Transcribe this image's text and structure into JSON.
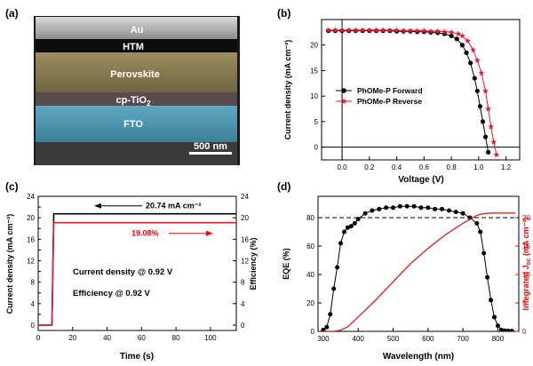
{
  "panels": {
    "a": {
      "label": "(a)",
      "layers": [
        "Au",
        "HTM",
        "Perovskite",
        "cp-TiO",
        "FTO"
      ],
      "tio2_subscript": "2",
      "scale_bar": "500 nm"
    },
    "b": {
      "label": "(b)"
    },
    "c": {
      "label": "(c)"
    },
    "d": {
      "label": "(d)"
    }
  },
  "colors": {
    "forward": "#000000",
    "reverse": "#e8192c",
    "accent": "#ff0000"
  },
  "chart_data": [
    {
      "panel": "b",
      "type": "line",
      "xlabel": "Voltage (V)",
      "ylabel": "Current density (mA cm⁻²)",
      "xlim": [
        -0.15,
        1.3
      ],
      "ylim": [
        -2.5,
        25
      ],
      "xticks": [
        0.0,
        0.2,
        0.4,
        0.6,
        0.8,
        1.0,
        1.2
      ],
      "xtick_labels": [
        "0.0",
        "0.2",
        "0.4",
        "0.6",
        "0.8",
        "1.0",
        "1.2"
      ],
      "yticks": [
        0,
        5,
        10,
        15,
        20
      ],
      "legend_position": "middle-right",
      "series": [
        {
          "name": "PhOMe-P Forward",
          "marker": "circle",
          "x": [
            -0.1,
            -0.05,
            0.0,
            0.05,
            0.1,
            0.15,
            0.2,
            0.25,
            0.3,
            0.35,
            0.4,
            0.45,
            0.5,
            0.55,
            0.6,
            0.65,
            0.7,
            0.75,
            0.8,
            0.84,
            0.88,
            0.91,
            0.94,
            0.97,
            0.99,
            1.01,
            1.03,
            1.05,
            1.07
          ],
          "y": [
            22.8,
            22.8,
            22.8,
            22.8,
            22.8,
            22.8,
            22.8,
            22.8,
            22.8,
            22.8,
            22.7,
            22.7,
            22.7,
            22.6,
            22.6,
            22.5,
            22.4,
            22.2,
            21.8,
            21.2,
            20.0,
            18.5,
            16.5,
            13.5,
            11.0,
            8.0,
            5.0,
            2.0,
            -1.0
          ]
        },
        {
          "name": "PhOMe-P Reverse",
          "marker": "star",
          "x": [
            -0.1,
            -0.05,
            0.0,
            0.05,
            0.1,
            0.15,
            0.2,
            0.25,
            0.3,
            0.35,
            0.4,
            0.45,
            0.5,
            0.55,
            0.6,
            0.65,
            0.7,
            0.75,
            0.8,
            0.85,
            0.88,
            0.92,
            0.96,
            0.99,
            1.02,
            1.05,
            1.07,
            1.09,
            1.11,
            1.13
          ],
          "y": [
            22.9,
            22.9,
            22.9,
            22.9,
            22.9,
            22.9,
            22.9,
            22.9,
            22.9,
            22.9,
            22.9,
            22.8,
            22.8,
            22.8,
            22.8,
            22.7,
            22.7,
            22.6,
            22.5,
            22.2,
            21.8,
            20.8,
            19.0,
            17.0,
            14.5,
            11.0,
            7.5,
            4.0,
            1.0,
            -1.5
          ]
        }
      ]
    },
    {
      "panel": "c",
      "type": "line",
      "xlabel": "Time (s)",
      "ylabel": "Current density (mA cm⁻²)",
      "y2label": "Efficiency (%)",
      "xlim": [
        0,
        115
      ],
      "ylim": [
        -1,
        24
      ],
      "xticks": [
        0,
        20,
        40,
        60,
        80,
        100
      ],
      "yticks": [
        0,
        2,
        4,
        6,
        8,
        10,
        12,
        14,
        16,
        18,
        20,
        22,
        24
      ],
      "y2ticks": [
        0,
        4,
        8,
        12,
        16,
        20,
        24
      ],
      "annotations": [
        "20.74 mA cm⁻²",
        "19.08%",
        "Current density @ 0.92 V",
        "Efficiency @ 0.92 V"
      ],
      "series": [
        {
          "name": "Current density @ 0.92 V",
          "x": [
            0,
            8,
            9,
            30,
            60,
            90,
            115
          ],
          "y": [
            0,
            0,
            20.74,
            20.74,
            20.74,
            20.74,
            20.74
          ]
        },
        {
          "name": "Efficiency @ 0.92 V",
          "x": [
            0,
            8,
            9,
            30,
            60,
            90,
            115
          ],
          "y": [
            0,
            0,
            19.08,
            19.08,
            19.08,
            19.08,
            19.08
          ]
        }
      ]
    },
    {
      "panel": "d",
      "type": "line",
      "xlabel": "Wavelength (nm)",
      "ylabel": "EQE (%)",
      "y2label": "Integrated J",
      "y2label_sub": "sc",
      "y2label_unit": " (mA cm⁻²)",
      "xlim": [
        285,
        860
      ],
      "ylim": [
        0,
        95
      ],
      "y2lim": [
        0,
        23.75
      ],
      "xticks": [
        300,
        400,
        500,
        600,
        700,
        800
      ],
      "yticks": [
        0,
        20,
        40,
        60,
        80
      ],
      "y2ticks": [
        0,
        5,
        10,
        15,
        20
      ],
      "reference_line_y": 80,
      "series": [
        {
          "name": "EQE",
          "x": [
            300,
            310,
            320,
            330,
            340,
            350,
            360,
            370,
            380,
            390,
            400,
            420,
            440,
            460,
            480,
            500,
            520,
            540,
            560,
            580,
            600,
            620,
            640,
            660,
            680,
            700,
            720,
            740,
            750,
            760,
            770,
            780,
            790,
            800,
            810,
            820,
            830,
            840
          ],
          "y": [
            1,
            3,
            12,
            30,
            45,
            62,
            70,
            73,
            74,
            76,
            79,
            83,
            85,
            86,
            87,
            87,
            88,
            88,
            88,
            87,
            87,
            86,
            86,
            85,
            84,
            83,
            80,
            76,
            70,
            55,
            38,
            22,
            10,
            4,
            1,
            0.5,
            0.3,
            0.2
          ]
        },
        {
          "name": "Integrated Jsc",
          "x": [
            300,
            330,
            350,
            370,
            400,
            450,
            500,
            550,
            600,
            650,
            700,
            740,
            760,
            780,
            800,
            830,
            850
          ],
          "y": [
            0,
            0,
            0.2,
            0.8,
            2.5,
            5.5,
            8.7,
            11.9,
            14.6,
            17.0,
            19.0,
            20.4,
            20.7,
            20.8,
            20.8,
            20.8,
            20.8
          ]
        }
      ]
    }
  ]
}
